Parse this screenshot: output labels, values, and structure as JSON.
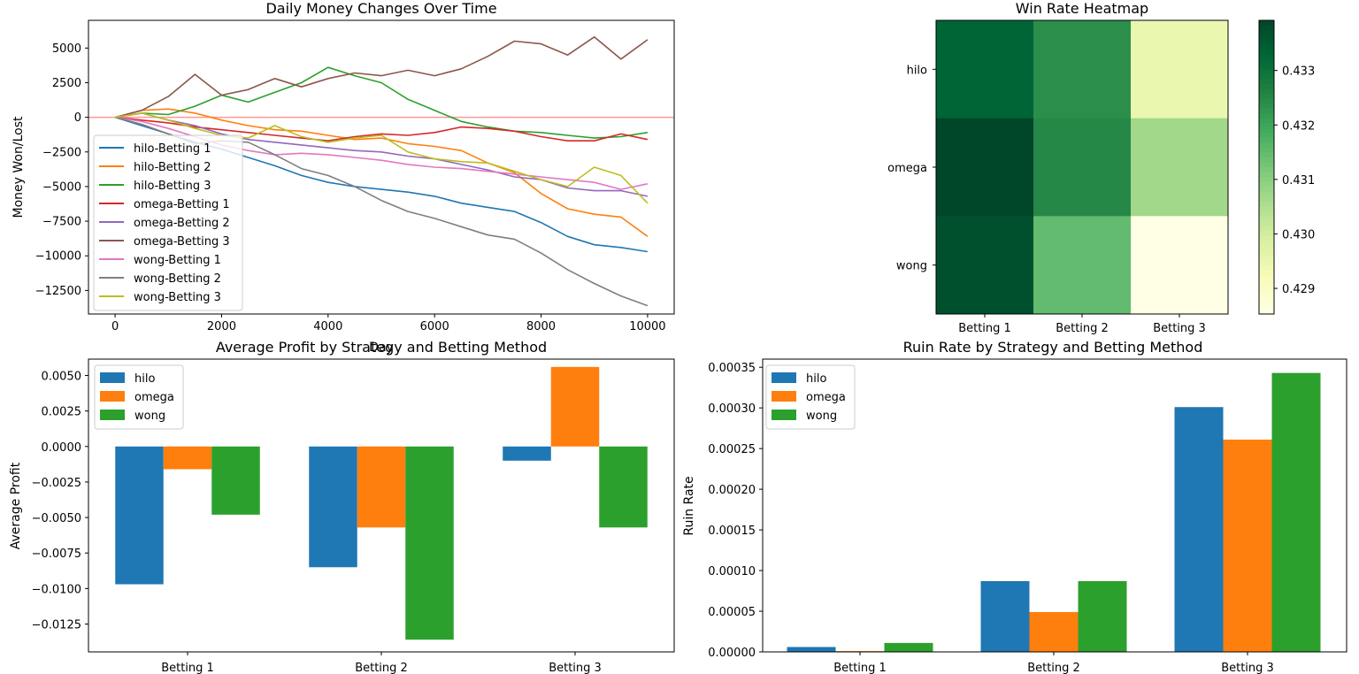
{
  "chart_data": [
    {
      "type": "line",
      "title": "Daily Money Changes Over Time",
      "xlabel": "Day",
      "ylabel": "Money Won/Lost",
      "xlim": [
        -500,
        10500
      ],
      "ylim": [
        -14200,
        7000
      ],
      "xticks": [
        0,
        2000,
        4000,
        6000,
        8000,
        10000
      ],
      "yticks": [
        -12500,
        -10000,
        -7500,
        -5000,
        -2500,
        0,
        2500,
        5000
      ],
      "xtick_labels": [
        "0",
        "2000",
        "4000",
        "6000",
        "8000",
        "10000"
      ],
      "ytick_labels": [
        "−12500",
        "−10000",
        "−7500",
        "−5000",
        "−2500",
        "0",
        "2500",
        "5000"
      ],
      "reference_line": {
        "y": 0,
        "color": "#ff9999"
      },
      "legend_position": "lower left",
      "series": [
        {
          "name": "hilo-Betting 1",
          "color": "#1f77b4",
          "x": [
            0,
            500,
            1000,
            1500,
            2000,
            2500,
            3000,
            3500,
            4000,
            4500,
            5000,
            5500,
            6000,
            6500,
            7000,
            7500,
            8000,
            8500,
            9000,
            9500,
            10000
          ],
          "y": [
            0,
            -600,
            -1200,
            -1800,
            -2300,
            -2900,
            -3500,
            -4200,
            -4700,
            -5000,
            -5200,
            -5400,
            -5700,
            -6200,
            -6500,
            -6800,
            -7600,
            -8600,
            -9200,
            -9400,
            -9700
          ]
        },
        {
          "name": "hilo-Betting 2",
          "color": "#ff7f0e",
          "x": [
            0,
            500,
            1000,
            1500,
            2000,
            2500,
            3000,
            3500,
            4000,
            4500,
            5000,
            5500,
            6000,
            6500,
            7000,
            7500,
            8000,
            8500,
            9000,
            9500,
            10000
          ],
          "y": [
            0,
            500,
            600,
            300,
            -200,
            -600,
            -900,
            -1000,
            -1300,
            -1600,
            -1500,
            -1900,
            -2100,
            -2400,
            -3300,
            -4000,
            -5500,
            -6600,
            -7000,
            -7200,
            -8600
          ]
        },
        {
          "name": "hilo-Betting 3",
          "color": "#2ca02c",
          "x": [
            0,
            500,
            1000,
            1500,
            2000,
            2500,
            3000,
            3500,
            4000,
            4500,
            5000,
            5500,
            6000,
            6500,
            7000,
            7500,
            8000,
            8500,
            9000,
            9500,
            10000
          ],
          "y": [
            0,
            300,
            200,
            800,
            1600,
            1100,
            1800,
            2500,
            3600,
            3000,
            2500,
            1300,
            500,
            -300,
            -700,
            -1000,
            -1100,
            -1300,
            -1500,
            -1400,
            -1100
          ]
        },
        {
          "name": "omega-Betting 1",
          "color": "#d62728",
          "x": [
            0,
            500,
            1000,
            1500,
            2000,
            2500,
            3000,
            3500,
            4000,
            4500,
            5000,
            5500,
            6000,
            6500,
            7000,
            7500,
            8000,
            8500,
            9000,
            9500,
            10000
          ],
          "y": [
            0,
            -200,
            -400,
            -700,
            -900,
            -1100,
            -1300,
            -1500,
            -1700,
            -1400,
            -1200,
            -1300,
            -1100,
            -700,
            -800,
            -1000,
            -1400,
            -1700,
            -1700,
            -1200,
            -1600
          ]
        },
        {
          "name": "omega-Betting 2",
          "color": "#9467bd",
          "x": [
            0,
            500,
            1000,
            1500,
            2000,
            2500,
            3000,
            3500,
            4000,
            4500,
            5000,
            5500,
            6000,
            6500,
            7000,
            7500,
            8000,
            8500,
            9000,
            9500,
            10000
          ],
          "y": [
            0,
            300,
            -200,
            -600,
            -1200,
            -1600,
            -1800,
            -2000,
            -2200,
            -2400,
            -2500,
            -2800,
            -3000,
            -3400,
            -3800,
            -4300,
            -4500,
            -5100,
            -5300,
            -5300,
            -5700
          ]
        },
        {
          "name": "omega-Betting 3",
          "color": "#8c564b",
          "x": [
            0,
            500,
            1000,
            1500,
            2000,
            2500,
            3000,
            3500,
            4000,
            4500,
            5000,
            5500,
            6000,
            6500,
            7000,
            7500,
            8000,
            8500,
            9000,
            9500,
            10000
          ],
          "y": [
            0,
            500,
            1500,
            3100,
            1600,
            2000,
            2800,
            2200,
            2800,
            3200,
            3000,
            3400,
            3000,
            3500,
            4400,
            5500,
            5300,
            4500,
            5800,
            4200,
            5600
          ]
        },
        {
          "name": "wong-Betting 1",
          "color": "#e377c2",
          "x": [
            0,
            500,
            1000,
            1500,
            2000,
            2500,
            3000,
            3500,
            4000,
            4500,
            5000,
            5500,
            6000,
            6500,
            7000,
            7500,
            8000,
            8500,
            9000,
            9500,
            10000
          ],
          "y": [
            0,
            -300,
            -800,
            -1400,
            -2000,
            -2400,
            -2700,
            -2600,
            -2700,
            -2900,
            -3100,
            -3400,
            -3600,
            -3700,
            -3900,
            -4100,
            -4300,
            -4500,
            -4700,
            -5200,
            -4800
          ]
        },
        {
          "name": "wong-Betting 2",
          "color": "#7f7f7f",
          "x": [
            0,
            500,
            1000,
            1500,
            2000,
            2500,
            3000,
            3500,
            4000,
            4500,
            5000,
            5500,
            6000,
            6500,
            7000,
            7500,
            8000,
            8500,
            9000,
            9500,
            10000
          ],
          "y": [
            0,
            -500,
            -1200,
            -1900,
            -1700,
            -1800,
            -2700,
            -3700,
            -4200,
            -5000,
            -6000,
            -6800,
            -7300,
            -7900,
            -8500,
            -8800,
            -9800,
            -11000,
            -12000,
            -12900,
            -13600
          ]
        },
        {
          "name": "wong-Betting 3",
          "color": "#bcbd22",
          "x": [
            0,
            500,
            1000,
            1500,
            2000,
            2500,
            3000,
            3500,
            4000,
            4500,
            5000,
            5500,
            6000,
            6500,
            7000,
            7500,
            8000,
            8500,
            9000,
            9500,
            10000
          ],
          "y": [
            0,
            300,
            -200,
            -800,
            -1300,
            -1500,
            -600,
            -1400,
            -1800,
            -1500,
            -1300,
            -2500,
            -3000,
            -3200,
            -3300,
            -3900,
            -4500,
            -5000,
            -3600,
            -4200,
            -6200
          ]
        }
      ]
    },
    {
      "type": "heatmap",
      "title": "Win Rate Heatmap",
      "row_labels": [
        "hilo",
        "omega",
        "wong"
      ],
      "column_labels": [
        "Betting 1",
        "Betting 2",
        "Betting 3"
      ],
      "values": [
        [
          0.4333,
          0.4324,
          0.4295
        ],
        [
          0.4339,
          0.4325,
          0.4307
        ],
        [
          0.4337,
          0.4315,
          0.4285
        ]
      ],
      "color_scale": "Greens",
      "vmin": 0.42853,
      "vmax": 0.43392,
      "colorbar_ticks": [
        0.429,
        0.43,
        0.431,
        0.432,
        0.433
      ],
      "colorbar_tick_labels": [
        "0.429",
        "0.430",
        "0.431",
        "0.432",
        "0.433"
      ]
    },
    {
      "type": "bar",
      "title": "Average Profit by Strategy and Betting Method",
      "xlabel": "",
      "ylabel": "Average Profit",
      "categories": [
        "Betting 1",
        "Betting 2",
        "Betting 3"
      ],
      "ylim": [
        -0.01446,
        0.00615
      ],
      "yticks": [
        -0.0125,
        -0.01,
        -0.0075,
        -0.005,
        -0.0025,
        0.0,
        0.0025,
        0.005
      ],
      "ytick_labels": [
        "−0.0125",
        "−0.0100",
        "−0.0075",
        "−0.0050",
        "−0.0025",
        "0.0000",
        "0.0025",
        "0.0050"
      ],
      "legend_position": "upper left",
      "series": [
        {
          "name": "hilo",
          "color": "#1f77b4",
          "values": [
            -0.0097,
            -0.0085,
            -0.001
          ]
        },
        {
          "name": "omega",
          "color": "#ff7f0e",
          "values": [
            -0.0016,
            -0.0057,
            0.0056
          ]
        },
        {
          "name": "wong",
          "color": "#2ca02c",
          "values": [
            -0.0048,
            -0.0136,
            -0.0057
          ]
        }
      ]
    },
    {
      "type": "bar",
      "title": "Ruin Rate by Strategy and Betting Method",
      "xlabel": "",
      "ylabel": "Ruin Rate",
      "categories": [
        "Betting 1",
        "Betting 2",
        "Betting 3"
      ],
      "ylim": [
        0,
        0.00036
      ],
      "yticks": [
        0,
        5e-05,
        0.0001,
        0.00015,
        0.0002,
        0.00025,
        0.0003,
        0.00035
      ],
      "ytick_labels": [
        "0.00000",
        "0.00005",
        "0.00010",
        "0.00015",
        "0.00020",
        "0.00025",
        "0.00030",
        "0.00035"
      ],
      "legend_position": "upper left",
      "series": [
        {
          "name": "hilo",
          "color": "#1f77b4",
          "values": [
            6e-06,
            8.7e-05,
            0.000301
          ]
        },
        {
          "name": "omega",
          "color": "#ff7f0e",
          "values": [
            1e-06,
            4.9e-05,
            0.000261
          ]
        },
        {
          "name": "wong",
          "color": "#2ca02c",
          "values": [
            1.1e-05,
            8.7e-05,
            0.000343
          ]
        }
      ]
    }
  ]
}
